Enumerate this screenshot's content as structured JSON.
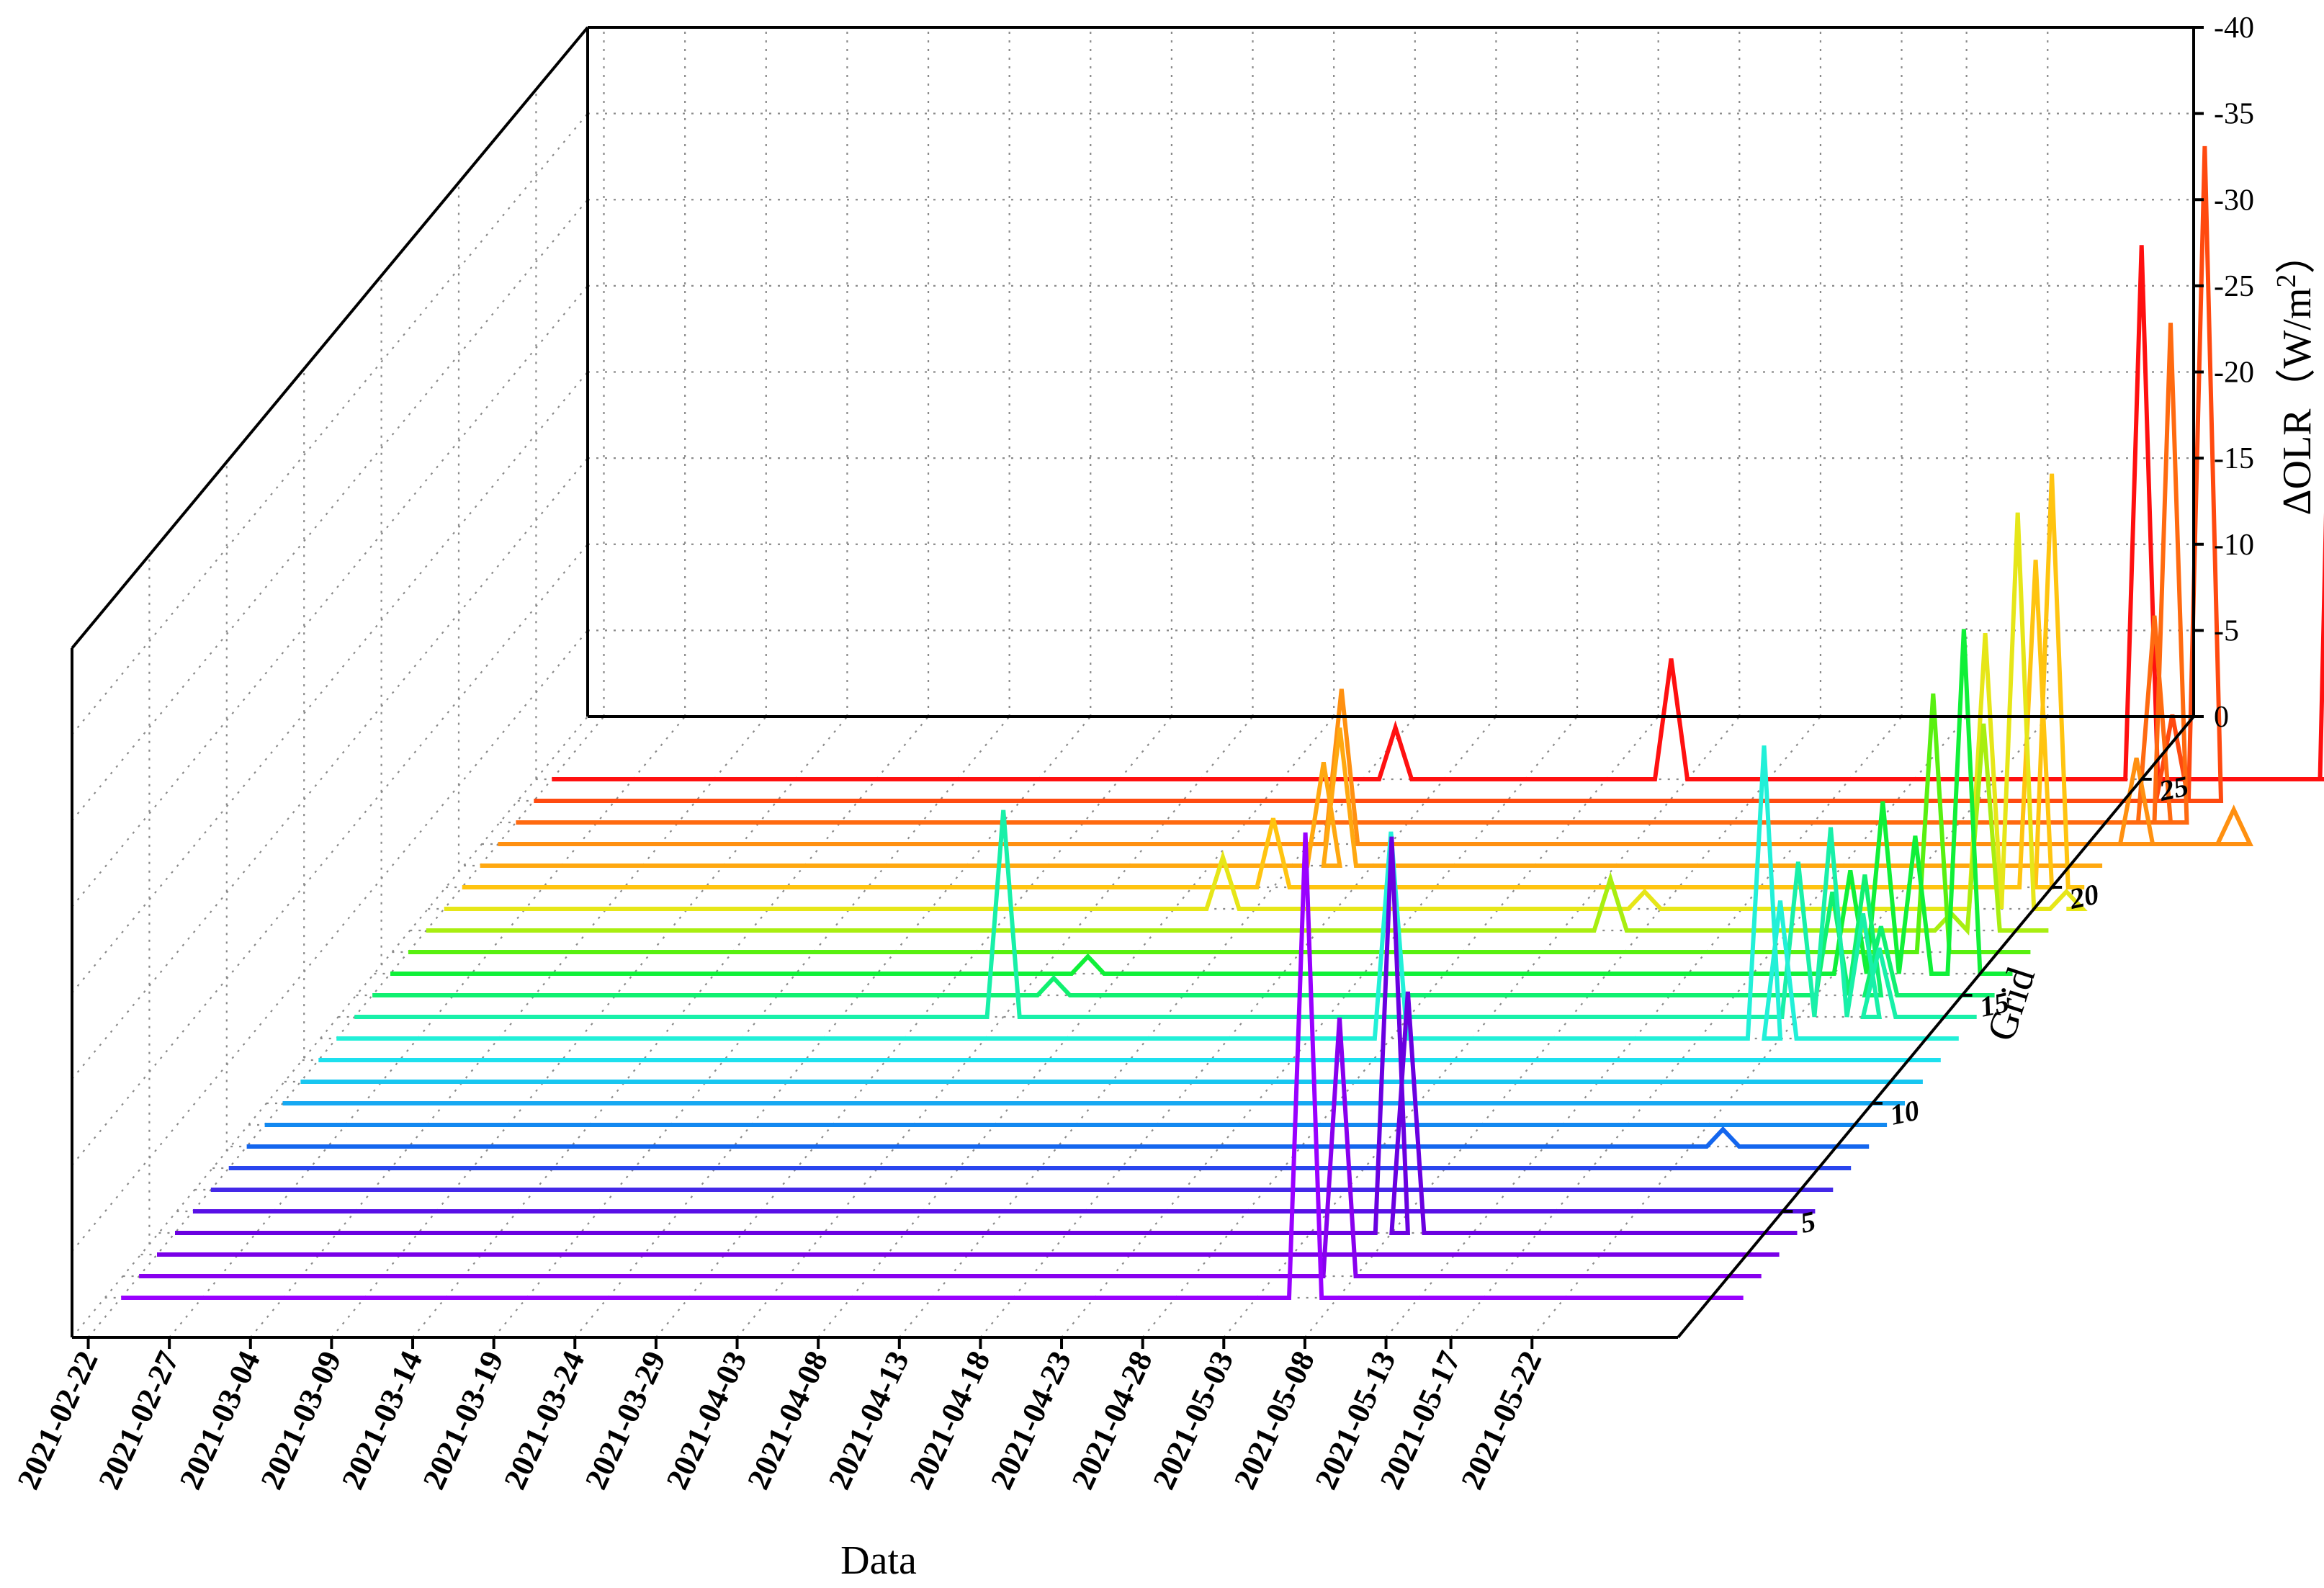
{
  "chart_data": {
    "type": "line",
    "chart_style": "3d-waterfall",
    "xlabel": "Data",
    "ylabel": "Grid",
    "zlabel": "ΔOLR（W/m²）",
    "zlabel_parts": {
      "main": "ΔOLR（W/m",
      "sup": "2",
      "end": "）"
    },
    "x_start": "2021-02-21",
    "x_end": "2021-05-31",
    "x_ticks": [
      "2021-02-22",
      "2021-02-27",
      "2021-03-04",
      "2021-03-09",
      "2021-03-14",
      "2021-03-19",
      "2021-03-24",
      "2021-03-29",
      "2021-04-03",
      "2021-04-08",
      "2021-04-13",
      "2021-04-18",
      "2021-04-23",
      "2021-04-28",
      "2021-05-03",
      "2021-05-08",
      "2021-05-13",
      "2021-05-17",
      "2021-05-22"
    ],
    "y_ticks": [
      5,
      10,
      15,
      20,
      25
    ],
    "y_range": [
      1,
      25
    ],
    "z_ticks": [
      0,
      5,
      10,
      15,
      20,
      25,
      30,
      35,
      40
    ],
    "z_range": [
      0,
      40
    ],
    "grid": true,
    "series": [
      {
        "grid": 1,
        "color": "#9900ff",
        "peaks": [
          [
            "2021-05-06",
            27
          ]
        ]
      },
      {
        "grid": 2,
        "color": "#8800ee",
        "peaks": [
          [
            "2021-05-07",
            15
          ]
        ]
      },
      {
        "grid": 3,
        "color": "#7a00e8",
        "peaks": []
      },
      {
        "grid": 4,
        "color": "#6a00e0",
        "peaks": [
          [
            "2021-05-08",
            23
          ],
          [
            "2021-05-09",
            14
          ]
        ]
      },
      {
        "grid": 5,
        "color": "#5810e6",
        "peaks": []
      },
      {
        "grid": 6,
        "color": "#4428e8",
        "peaks": []
      },
      {
        "grid": 7,
        "color": "#2a45ee",
        "peaks": []
      },
      {
        "grid": 8,
        "color": "#1466ee",
        "peaks": [
          [
            "2021-05-24",
            1
          ]
        ]
      },
      {
        "grid": 9,
        "color": "#1288f0",
        "peaks": []
      },
      {
        "grid": 10,
        "color": "#16a8f2",
        "peaks": []
      },
      {
        "grid": 11,
        "color": "#18c6f0",
        "peaks": []
      },
      {
        "grid": 12,
        "color": "#1de0ee",
        "peaks": []
      },
      {
        "grid": 13,
        "color": "#22f0d8",
        "peaks": [
          [
            "2021-04-28",
            12
          ],
          [
            "2021-05-21",
            17
          ],
          [
            "2021-05-22",
            8
          ]
        ]
      },
      {
        "grid": 14,
        "color": "#18f0a8",
        "peaks": [
          [
            "2021-04-03",
            12
          ],
          [
            "2021-05-22",
            9
          ],
          [
            "2021-05-24",
            11
          ],
          [
            "2021-05-26",
            6
          ],
          [
            "2021-05-27",
            4
          ]
        ]
      },
      {
        "grid": 15,
        "color": "#10f070",
        "peaks": [
          [
            "2021-04-05",
            1
          ],
          [
            "2021-05-23",
            6
          ],
          [
            "2021-05-25",
            7
          ],
          [
            "2021-05-26",
            4
          ]
        ]
      },
      {
        "grid": 16,
        "color": "#10f038",
        "peaks": [
          [
            "2021-04-06",
            1
          ],
          [
            "2021-05-23",
            6
          ],
          [
            "2021-05-25",
            10
          ],
          [
            "2021-05-27",
            8
          ],
          [
            "2021-05-30",
            20
          ]
        ]
      },
      {
        "grid": 17,
        "color": "#58f010",
        "peaks": [
          [
            "2021-05-27",
            15
          ]
        ]
      },
      {
        "grid": 18,
        "color": "#a8ee10",
        "peaks": [
          [
            "2021-05-06",
            3
          ],
          [
            "2021-05-27",
            1
          ],
          [
            "2021-05-29",
            12
          ]
        ]
      },
      {
        "grid": 19,
        "color": "#e6e618",
        "peaks": [
          [
            "2021-04-11",
            3
          ],
          [
            "2021-05-07",
            1
          ],
          [
            "2021-05-28",
            16
          ],
          [
            "2021-05-30",
            23
          ],
          [
            "2021-06-02",
            1
          ]
        ]
      },
      {
        "grid": 20,
        "color": "#ffc410",
        "peaks": [
          [
            "2021-04-13",
            4
          ],
          [
            "2021-05-30",
            19
          ],
          [
            "2021-05-31",
            24
          ]
        ]
      },
      {
        "grid": 21,
        "color": "#ffa810",
        "peaks": [
          [
            "2021-04-15",
            6
          ],
          [
            "2021-04-16",
            8
          ]
        ]
      },
      {
        "grid": 22,
        "color": "#ff9010",
        "peaks": [
          [
            "2021-04-15",
            9
          ],
          [
            "2021-06-03",
            5
          ],
          [
            "2021-06-09",
            2
          ]
        ]
      },
      {
        "grid": 23,
        "color": "#ff6a10",
        "peaks": [
          [
            "2021-06-03",
            12
          ],
          [
            "2021-06-04",
            29
          ]
        ]
      },
      {
        "grid": 24,
        "color": "#ff4a10",
        "peaks": [
          [
            "2021-06-03",
            5
          ],
          [
            "2021-06-05",
            38
          ]
        ]
      },
      {
        "grid": 25,
        "color": "#ff1010",
        "peaks": [
          [
            "2021-04-15",
            3
          ],
          [
            "2021-05-02",
            7
          ],
          [
            "2021-05-31",
            31
          ],
          [
            "2021-06-12",
            41
          ],
          [
            "2021-06-13",
            25
          ],
          [
            "2021-06-14",
            22
          ],
          [
            "2021-06-16",
            6
          ]
        ]
      }
    ]
  }
}
